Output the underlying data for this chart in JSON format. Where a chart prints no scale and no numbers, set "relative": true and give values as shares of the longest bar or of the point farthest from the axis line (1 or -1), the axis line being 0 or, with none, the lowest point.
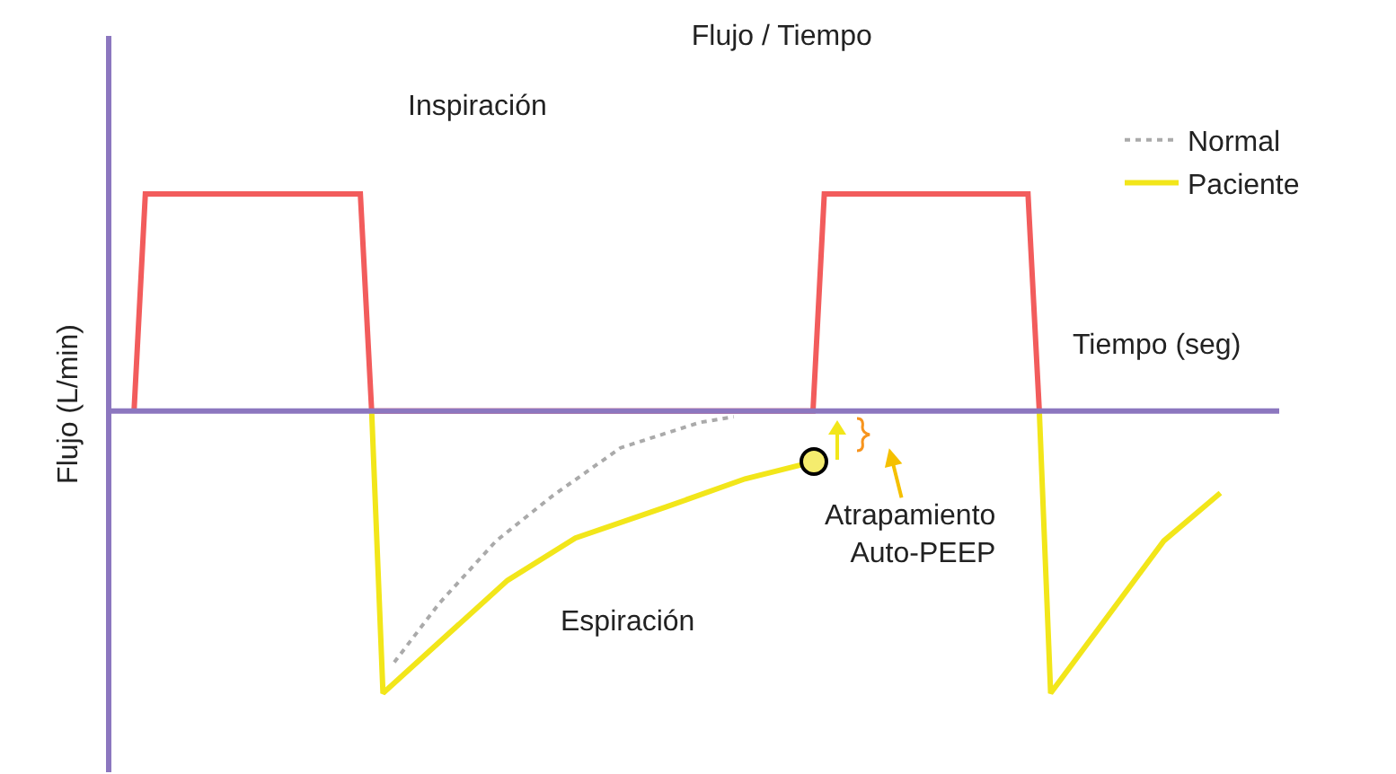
{
  "chart_data": {
    "type": "line",
    "title": "Flujo / Tiempo",
    "xlabel": "Tiempo (seg)",
    "ylabel": "Flujo (L/min)",
    "relative": true,
    "legend": "top right",
    "ref_lines": [
      {
        "axis": "y",
        "value": 0,
        "color": "#8c77bf"
      }
    ],
    "annotations": [
      "Inspiración",
      "Espiración",
      "Atrapamiento\nAuto-PEEP"
    ],
    "categories": [
      null,
      null,
      null,
      null,
      null,
      null,
      null,
      null,
      null,
      null,
      null,
      null,
      null,
      null,
      null,
      null,
      null,
      null,
      null,
      null,
      null,
      null,
      null,
      null,
      null,
      null,
      null,
      null,
      null,
      null,
      null,
      null,
      null,
      null,
      null,
      null,
      null,
      null,
      null,
      null,
      null,
      null,
      null,
      null,
      null,
      null,
      null,
      null,
      null,
      null,
      null,
      null,
      null,
      null,
      null,
      null,
      null,
      null,
      null,
      null,
      null,
      null,
      null,
      null,
      null,
      null,
      null,
      null,
      null,
      null,
      null,
      null,
      null,
      null,
      null,
      null,
      null,
      null,
      null,
      null,
      null,
      null,
      null,
      null,
      null,
      null,
      null,
      null,
      null,
      null,
      null,
      null,
      null,
      null,
      null,
      null,
      null,
      null,
      null,
      null,
      null,
      null,
      null,
      null
    ],
    "series": [
      {
        "name": "Normal",
        "color": "#aaaaaa",
        "line_style": "dotted",
        "values": [
          null,
          null,
          null,
          null,
          null,
          null,
          null,
          null,
          null,
          null,
          null,
          null,
          null,
          null,
          null,
          null,
          null,
          null,
          null,
          null,
          null,
          null,
          null,
          null,
          null,
          -0.89,
          null,
          null,
          null,
          -0.68,
          null,
          null,
          null,
          null,
          -0.46,
          null,
          null,
          null,
          null,
          -0.3,
          null,
          null,
          null,
          null,
          null,
          -0.13,
          null,
          null,
          null,
          null,
          null,
          null,
          -0.04,
          null,
          null,
          -0.02,
          null,
          null,
          null,
          null,
          null,
          null,
          null,
          null,
          null,
          null,
          null,
          null,
          null,
          null,
          null,
          null,
          null,
          null,
          null,
          null,
          null,
          null,
          null,
          null,
          null,
          null,
          null,
          null,
          null,
          null,
          null,
          null,
          null,
          null,
          null,
          null,
          null,
          null,
          null,
          null,
          null,
          null,
          null,
          null,
          null,
          null,
          null,
          null
        ]
      },
      {
        "color": "#f25c5c",
        "line_style": "solid",
        "values": [
          null,
          null,
          0,
          0.77,
          0.77,
          0.77,
          0.77,
          0.77,
          0.77,
          0.77,
          0.77,
          0.77,
          0.77,
          0.77,
          0.77,
          0.77,
          0.77,
          0.77,
          0.77,
          0.77,
          0.77,
          0.77,
          0.77,
          0,
          null,
          null,
          null,
          null,
          null,
          null,
          null,
          null,
          null,
          null,
          null,
          null,
          null,
          null,
          null,
          null,
          null,
          null,
          null,
          null,
          null,
          null,
          null,
          null,
          null,
          null,
          null,
          null,
          null,
          null,
          null,
          null,
          null,
          null,
          null,
          null,
          null,
          null,
          0,
          0.77,
          0.77,
          0.77,
          0.77,
          0.77,
          0.77,
          0.77,
          0.77,
          0.77,
          0.77,
          0.77,
          0.77,
          0.77,
          0.77,
          0.77,
          0.77,
          0.77,
          0.77,
          0.77,
          0,
          null,
          null,
          null,
          null,
          null,
          null,
          null,
          null,
          null,
          null,
          null,
          null,
          null,
          null,
          null,
          null,
          null,
          null,
          null,
          null,
          null
        ]
      },
      {
        "name": "Paciente",
        "color": "#f2e61a",
        "line_style": "solid",
        "values": [
          null,
          null,
          null,
          null,
          null,
          null,
          null,
          null,
          null,
          null,
          null,
          null,
          null,
          null,
          null,
          null,
          null,
          null,
          null,
          null,
          null,
          null,
          null,
          0,
          -1,
          null,
          null,
          null,
          null,
          null,
          null,
          null,
          null,
          null,
          null,
          -0.6,
          null,
          null,
          null,
          null,
          null,
          -0.45,
          null,
          null,
          null,
          null,
          null,
          null,
          null,
          -0.34,
          null,
          null,
          null,
          null,
          null,
          null,
          -0.24,
          null,
          null,
          null,
          null,
          null,
          -0.18,
          null,
          null,
          null,
          null,
          null,
          null,
          null,
          null,
          null,
          null,
          null,
          null,
          null,
          null,
          null,
          null,
          null,
          null,
          null,
          null,
          null,
          null,
          null,
          null,
          null,
          null,
          null,
          null,
          null,
          null,
          null,
          null,
          null,
          null,
          null,
          null,
          null,
          null,
          null,
          null,
          null
        ]
      },
      {
        "color": "#f2e61a",
        "line_style": "solid",
        "values": [
          null,
          null,
          null,
          null,
          null,
          null,
          null,
          null,
          null,
          null,
          null,
          null,
          null,
          null,
          null,
          null,
          null,
          null,
          null,
          null,
          null,
          null,
          null,
          null,
          null,
          null,
          null,
          null,
          null,
          null,
          null,
          null,
          null,
          null,
          null,
          null,
          null,
          null,
          null,
          null,
          null,
          null,
          null,
          null,
          null,
          null,
          null,
          null,
          null,
          null,
          null,
          null,
          null,
          null,
          null,
          null,
          null,
          null,
          null,
          null,
          null,
          null,
          null,
          null,
          null,
          null,
          null,
          null,
          null,
          null,
          null,
          null,
          null,
          null,
          null,
          null,
          null,
          null,
          null,
          null,
          null,
          null,
          0,
          -1,
          null,
          null,
          null,
          null,
          null,
          null,
          null,
          null,
          null,
          -0.46,
          null,
          null,
          null,
          null,
          -0.29,
          null,
          null,
          null,
          null,
          null
        ]
      }
    ]
  }
}
